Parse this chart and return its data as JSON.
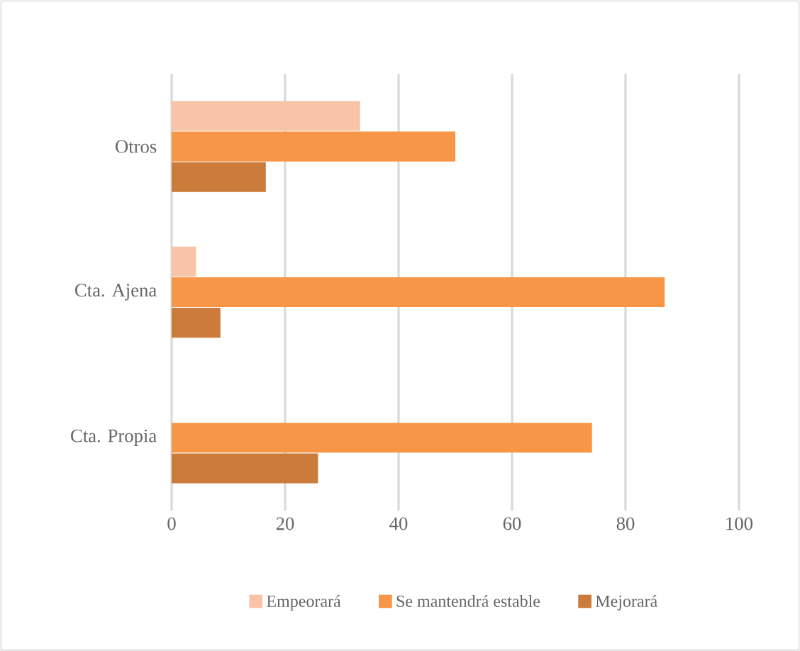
{
  "chart_data": {
    "type": "bar",
    "orientation": "horizontal",
    "categories": [
      "Otros",
      "Cta. Ajena",
      "Cta. Propia"
    ],
    "series": [
      {
        "name": "Empeorará",
        "color": "#f8c3a6",
        "values": [
          33.2,
          4.3,
          0
        ]
      },
      {
        "name": "Se mantendrá estable",
        "color": "#f79646",
        "values": [
          50.0,
          86.9,
          74.1
        ]
      },
      {
        "name": "Mejorará",
        "color": "#cb7b3a",
        "values": [
          16.6,
          8.6,
          25.8
        ]
      }
    ],
    "xlim": [
      0,
      100
    ],
    "xticks": [
      0,
      20,
      40,
      60,
      80,
      100
    ],
    "grid": "x",
    "legend": "bottom"
  }
}
